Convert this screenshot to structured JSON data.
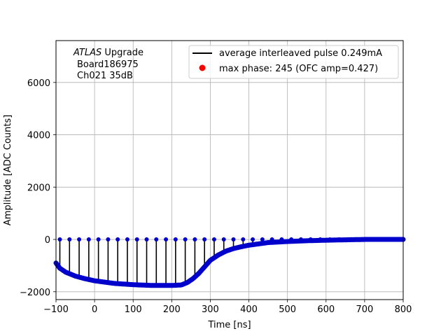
{
  "chart_data": {
    "type": "line",
    "title": "",
    "xlabel": "Time [ns]",
    "ylabel": "Amplitude [ADC Counts]",
    "xlim": [
      -100,
      800
    ],
    "ylim": [
      -2300,
      7600
    ],
    "xticks": [
      -100,
      0,
      100,
      200,
      300,
      400,
      500,
      600,
      700,
      800
    ],
    "yticks": [
      -2000,
      0,
      2000,
      4000,
      6000
    ],
    "grid": true,
    "annotation": {
      "experiment": "ATLAS",
      "suffix": " Upgrade",
      "board": "Board186975",
      "channel": "Ch021 35dB"
    },
    "legend": {
      "position": "top-right",
      "entries": [
        {
          "label": "average interleaved pulse 0.249mA",
          "style": "line",
          "color": "#000000"
        },
        {
          "label": "max phase: 245 (OFC amp=0.427)",
          "style": "marker",
          "color": "#ff0000"
        }
      ]
    },
    "pulse_curve": {
      "name": "average interleaved pulse",
      "color": "#0000cc",
      "x": [
        -100,
        -90,
        -75,
        -50,
        -25,
        0,
        25,
        50,
        100,
        150,
        200,
        225,
        240,
        255,
        270,
        285,
        300,
        320,
        340,
        360,
        380,
        400,
        450,
        500,
        550,
        600,
        700,
        800
      ],
      "y": [
        -900,
        -1100,
        -1250,
        -1400,
        -1500,
        -1580,
        -1630,
        -1680,
        -1730,
        -1760,
        -1760,
        -1740,
        -1650,
        -1500,
        -1300,
        -1050,
        -800,
        -600,
        -450,
        -350,
        -280,
        -220,
        -120,
        -80,
        -50,
        -30,
        0,
        0
      ]
    },
    "samples": {
      "name": "phase samples",
      "color": "#0000cc",
      "x": [
        -90,
        -65,
        -40,
        -15,
        10,
        35,
        60,
        85,
        110,
        135,
        160,
        185,
        210,
        235,
        260,
        285,
        310,
        335,
        360,
        385,
        410,
        435,
        460,
        485,
        510,
        535,
        560,
        585,
        610,
        635,
        660,
        685,
        710,
        735,
        760,
        785
      ],
      "baseline": 0
    },
    "max_phase_marker": {
      "x": null,
      "y": null,
      "color": "#ff0000"
    }
  }
}
